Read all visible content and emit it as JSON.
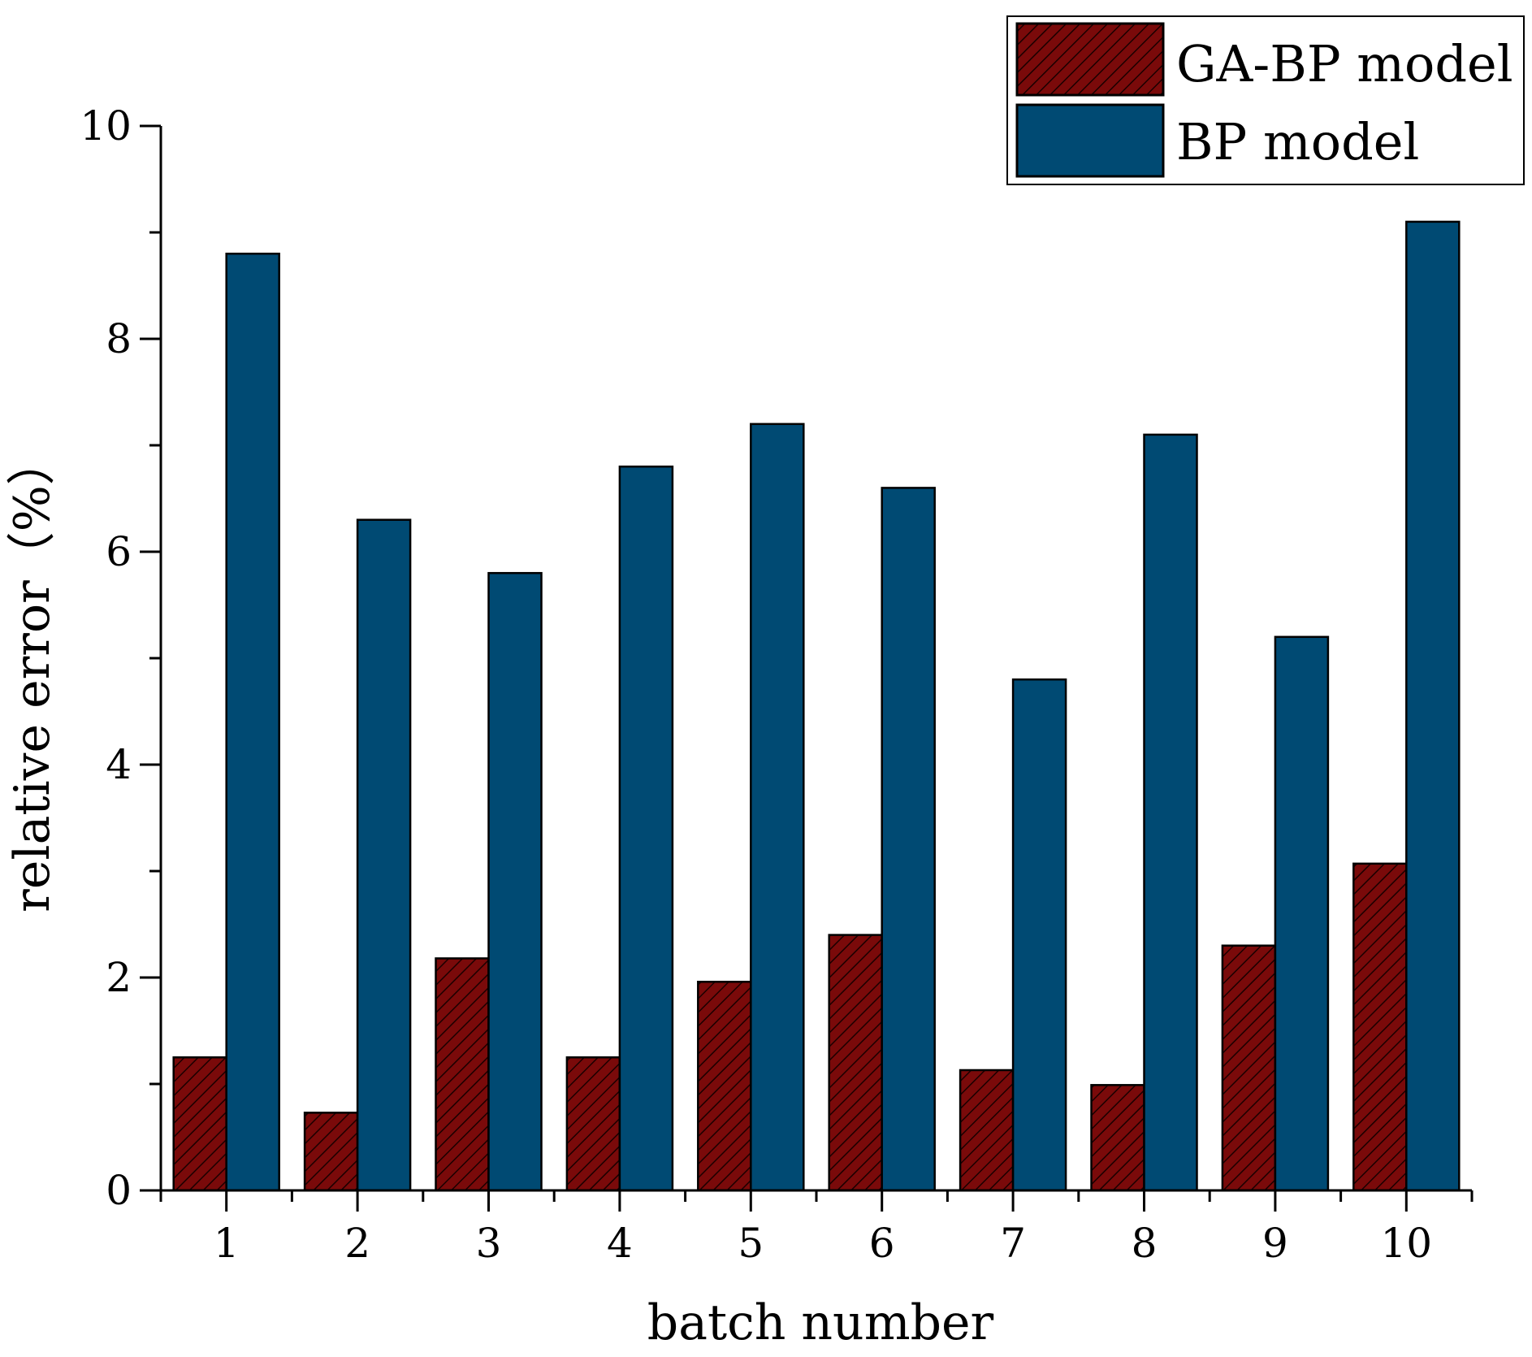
{
  "chart_data": {
    "type": "bar",
    "title": "",
    "xlabel": "batch number",
    "ylabel": "relative error（%）",
    "categories": [
      "1",
      "2",
      "3",
      "4",
      "5",
      "6",
      "7",
      "8",
      "9",
      "10"
    ],
    "ylim": [
      0,
      10
    ],
    "yticks": [
      "0",
      "2",
      "4",
      "6",
      "8",
      "10"
    ],
    "legend_position": "top-right",
    "series": [
      {
        "name": "GA-BP model",
        "color": "#7a0a0a",
        "pattern": "hatched",
        "values": [
          1.25,
          0.73,
          2.18,
          1.25,
          1.96,
          2.4,
          1.13,
          0.99,
          2.3,
          3.07
        ]
      },
      {
        "name": "BP model",
        "color": "#004a73",
        "pattern": "solid",
        "values": [
          8.8,
          6.3,
          5.8,
          6.8,
          7.2,
          6.6,
          4.8,
          7.1,
          5.2,
          9.1
        ]
      }
    ]
  }
}
